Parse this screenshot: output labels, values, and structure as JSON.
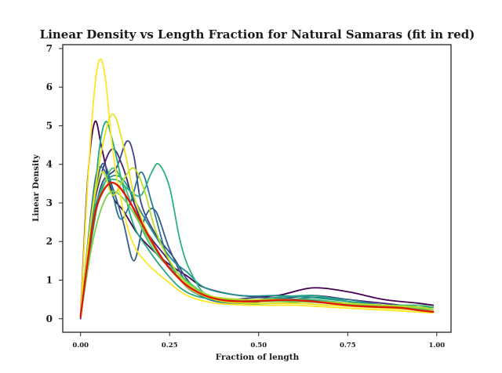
{
  "chart_data": {
    "type": "line",
    "title": "Linear Density vs Length Fraction for Natural Samaras (fit in red)",
    "xlabel": "Fraction of length",
    "ylabel": "Linear Density",
    "xlim": [
      -0.05,
      1.04
    ],
    "ylim": [
      -0.35,
      7.1
    ],
    "xticks": [
      0.0,
      0.25,
      0.5,
      0.75,
      1.0
    ],
    "xtick_labels": [
      "0.00",
      "0.25",
      "0.50",
      "0.75",
      "1.00"
    ],
    "yticks": [
      0,
      1,
      2,
      3,
      4,
      5,
      6,
      7
    ],
    "ytick_labels": [
      "0",
      "1",
      "2",
      "3",
      "4",
      "5",
      "6",
      "7"
    ],
    "grid": false,
    "fit_color": "#dd1c05",
    "series": [
      {
        "color": "#440154",
        "values": [
          [
            0.0,
            0.1
          ],
          [
            0.02,
            3.6
          ],
          [
            0.04,
            5.1
          ],
          [
            0.06,
            4.4
          ],
          [
            0.09,
            3.2
          ],
          [
            0.12,
            2.8
          ],
          [
            0.16,
            2.2
          ],
          [
            0.2,
            1.8
          ],
          [
            0.25,
            1.4
          ],
          [
            0.3,
            1.1
          ],
          [
            0.35,
            0.8
          ],
          [
            0.45,
            0.6
          ],
          [
            0.55,
            0.6
          ],
          [
            0.65,
            0.8
          ],
          [
            0.75,
            0.7
          ],
          [
            0.85,
            0.5
          ],
          [
            0.95,
            0.4
          ],
          [
            0.99,
            0.35
          ]
        ]
      },
      {
        "color": "#482475",
        "values": [
          [
            0.0,
            0.0
          ],
          [
            0.03,
            2.5
          ],
          [
            0.06,
            3.8
          ],
          [
            0.09,
            4.4
          ],
          [
            0.12,
            3.9
          ],
          [
            0.15,
            3.0
          ],
          [
            0.19,
            2.2
          ],
          [
            0.24,
            1.6
          ],
          [
            0.29,
            1.0
          ],
          [
            0.35,
            0.55
          ],
          [
            0.45,
            0.5
          ],
          [
            0.55,
            0.5
          ],
          [
            0.65,
            0.6
          ],
          [
            0.75,
            0.5
          ],
          [
            0.85,
            0.4
          ],
          [
            0.95,
            0.3
          ],
          [
            0.99,
            0.25
          ]
        ]
      },
      {
        "color": "#414487",
        "values": [
          [
            0.0,
            0.05
          ],
          [
            0.03,
            2.2
          ],
          [
            0.06,
            3.5
          ],
          [
            0.1,
            3.9
          ],
          [
            0.13,
            4.6
          ],
          [
            0.15,
            4.2
          ],
          [
            0.17,
            3.0
          ],
          [
            0.21,
            2.2
          ],
          [
            0.26,
            1.6
          ],
          [
            0.31,
            0.9
          ],
          [
            0.38,
            0.5
          ],
          [
            0.5,
            0.55
          ],
          [
            0.6,
            0.5
          ],
          [
            0.7,
            0.45
          ],
          [
            0.8,
            0.35
          ],
          [
            0.9,
            0.3
          ],
          [
            0.99,
            0.3
          ]
        ]
      },
      {
        "color": "#355f8d",
        "values": [
          [
            0.0,
            0.05
          ],
          [
            0.03,
            2.6
          ],
          [
            0.06,
            4.0
          ],
          [
            0.09,
            3.4
          ],
          [
            0.12,
            2.5
          ],
          [
            0.15,
            1.5
          ],
          [
            0.18,
            2.6
          ],
          [
            0.21,
            2.8
          ],
          [
            0.25,
            1.8
          ],
          [
            0.3,
            0.9
          ],
          [
            0.36,
            0.5
          ],
          [
            0.45,
            0.4
          ],
          [
            0.55,
            0.5
          ],
          [
            0.65,
            0.6
          ],
          [
            0.75,
            0.45
          ],
          [
            0.85,
            0.35
          ],
          [
            0.95,
            0.25
          ],
          [
            0.99,
            0.2
          ]
        ]
      },
      {
        "color": "#2a788e",
        "values": [
          [
            0.0,
            0.05
          ],
          [
            0.03,
            2.8
          ],
          [
            0.05,
            3.9
          ],
          [
            0.08,
            3.6
          ],
          [
            0.11,
            2.6
          ],
          [
            0.14,
            3.0
          ],
          [
            0.17,
            3.8
          ],
          [
            0.2,
            3.0
          ],
          [
            0.24,
            1.7
          ],
          [
            0.28,
            1.0
          ],
          [
            0.34,
            0.6
          ],
          [
            0.45,
            0.5
          ],
          [
            0.55,
            0.45
          ],
          [
            0.65,
            0.55
          ],
          [
            0.75,
            0.5
          ],
          [
            0.85,
            0.35
          ],
          [
            0.95,
            0.3
          ],
          [
            0.99,
            0.25
          ]
        ]
      },
      {
        "color": "#21918c",
        "values": [
          [
            0.0,
            0.05
          ],
          [
            0.03,
            2.4
          ],
          [
            0.06,
            3.4
          ],
          [
            0.09,
            3.7
          ],
          [
            0.12,
            3.6
          ],
          [
            0.15,
            3.1
          ],
          [
            0.18,
            2.6
          ],
          [
            0.22,
            2.0
          ],
          [
            0.26,
            1.5
          ],
          [
            0.3,
            1.2
          ],
          [
            0.35,
            0.8
          ],
          [
            0.45,
            0.6
          ],
          [
            0.55,
            0.6
          ],
          [
            0.65,
            0.55
          ],
          [
            0.75,
            0.45
          ],
          [
            0.85,
            0.35
          ],
          [
            0.95,
            0.3
          ],
          [
            0.99,
            0.3
          ]
        ]
      },
      {
        "color": "#22a884",
        "values": [
          [
            0.0,
            0.05
          ],
          [
            0.03,
            2.0
          ],
          [
            0.05,
            4.2
          ],
          [
            0.07,
            5.1
          ],
          [
            0.09,
            4.6
          ],
          [
            0.12,
            3.4
          ],
          [
            0.15,
            2.4
          ],
          [
            0.19,
            1.8
          ],
          [
            0.23,
            1.3
          ],
          [
            0.28,
            0.8
          ],
          [
            0.34,
            0.55
          ],
          [
            0.45,
            0.45
          ],
          [
            0.55,
            0.55
          ],
          [
            0.65,
            0.6
          ],
          [
            0.75,
            0.45
          ],
          [
            0.85,
            0.3
          ],
          [
            0.95,
            0.25
          ],
          [
            0.99,
            0.2
          ]
        ]
      },
      {
        "color": "#2db27d",
        "values": [
          [
            0.0,
            0.05
          ],
          [
            0.03,
            2.0
          ],
          [
            0.06,
            3.4
          ],
          [
            0.1,
            3.6
          ],
          [
            0.14,
            3.3
          ],
          [
            0.17,
            3.2
          ],
          [
            0.2,
            3.8
          ],
          [
            0.22,
            4.0
          ],
          [
            0.25,
            3.4
          ],
          [
            0.28,
            2.0
          ],
          [
            0.31,
            1.2
          ],
          [
            0.36,
            0.55
          ],
          [
            0.45,
            0.4
          ],
          [
            0.55,
            0.4
          ],
          [
            0.65,
            0.45
          ],
          [
            0.75,
            0.4
          ],
          [
            0.85,
            0.3
          ],
          [
            0.95,
            0.25
          ],
          [
            0.99,
            0.2
          ]
        ]
      },
      {
        "color": "#44bf70",
        "values": [
          [
            0.0,
            0.05
          ],
          [
            0.03,
            2.2
          ],
          [
            0.06,
            3.3
          ],
          [
            0.09,
            3.9
          ],
          [
            0.12,
            3.5
          ],
          [
            0.15,
            2.8
          ],
          [
            0.19,
            2.0
          ],
          [
            0.23,
            1.5
          ],
          [
            0.27,
            1.2
          ],
          [
            0.31,
            0.9
          ],
          [
            0.36,
            0.6
          ],
          [
            0.45,
            0.45
          ],
          [
            0.55,
            0.5
          ],
          [
            0.65,
            0.5
          ],
          [
            0.75,
            0.4
          ],
          [
            0.85,
            0.35
          ],
          [
            0.95,
            0.35
          ],
          [
            0.99,
            0.3
          ]
        ]
      },
      {
        "color": "#7ad151",
        "values": [
          [
            0.0,
            0.05
          ],
          [
            0.03,
            1.8
          ],
          [
            0.06,
            2.9
          ],
          [
            0.09,
            3.3
          ],
          [
            0.13,
            3.0
          ],
          [
            0.17,
            2.4
          ],
          [
            0.21,
            1.8
          ],
          [
            0.25,
            1.3
          ],
          [
            0.29,
            1.0
          ],
          [
            0.34,
            0.7
          ],
          [
            0.4,
            0.5
          ],
          [
            0.5,
            0.45
          ],
          [
            0.6,
            0.45
          ],
          [
            0.7,
            0.4
          ],
          [
            0.8,
            0.35
          ],
          [
            0.9,
            0.3
          ],
          [
            0.99,
            0.25
          ]
        ]
      },
      {
        "color": "#bddf26",
        "values": [
          [
            0.0,
            0.05
          ],
          [
            0.03,
            2.6
          ],
          [
            0.06,
            3.8
          ],
          [
            0.09,
            3.2
          ],
          [
            0.12,
            3.6
          ],
          [
            0.15,
            3.9
          ],
          [
            0.18,
            3.3
          ],
          [
            0.21,
            2.3
          ],
          [
            0.25,
            1.5
          ],
          [
            0.3,
            0.9
          ],
          [
            0.36,
            0.6
          ],
          [
            0.45,
            0.5
          ],
          [
            0.55,
            0.5
          ],
          [
            0.65,
            0.45
          ],
          [
            0.75,
            0.4
          ],
          [
            0.85,
            0.35
          ],
          [
            0.95,
            0.3
          ],
          [
            0.99,
            0.25
          ]
        ]
      },
      {
        "color": "#fde725",
        "values": [
          [
            0.0,
            0.05
          ],
          [
            0.02,
            3.5
          ],
          [
            0.04,
            6.0
          ],
          [
            0.055,
            6.72
          ],
          [
            0.07,
            6.2
          ],
          [
            0.09,
            4.4
          ],
          [
            0.12,
            2.8
          ],
          [
            0.15,
            1.9
          ],
          [
            0.19,
            1.4
          ],
          [
            0.24,
            1.0
          ],
          [
            0.3,
            0.6
          ],
          [
            0.38,
            0.4
          ],
          [
            0.5,
            0.35
          ],
          [
            0.6,
            0.35
          ],
          [
            0.7,
            0.3
          ],
          [
            0.8,
            0.25
          ],
          [
            0.9,
            0.2
          ],
          [
            0.99,
            0.15
          ]
        ]
      },
      {
        "color": "#e8e419",
        "values": [
          [
            0.0,
            0.05
          ],
          [
            0.03,
            2.6
          ],
          [
            0.06,
            4.4
          ],
          [
            0.09,
            5.3
          ],
          [
            0.12,
            4.5
          ],
          [
            0.15,
            3.2
          ],
          [
            0.18,
            2.4
          ],
          [
            0.22,
            1.7
          ],
          [
            0.27,
            1.1
          ],
          [
            0.32,
            0.7
          ],
          [
            0.4,
            0.45
          ],
          [
            0.5,
            0.4
          ],
          [
            0.6,
            0.4
          ],
          [
            0.7,
            0.35
          ],
          [
            0.8,
            0.3
          ],
          [
            0.9,
            0.25
          ],
          [
            0.99,
            0.2
          ]
        ]
      }
    ],
    "fit": {
      "color": "#dd1c05",
      "values": [
        [
          0.0,
          0.05
        ],
        [
          0.02,
          1.5
        ],
        [
          0.04,
          2.7
        ],
        [
          0.06,
          3.25
        ],
        [
          0.085,
          3.52
        ],
        [
          0.11,
          3.4
        ],
        [
          0.14,
          3.0
        ],
        [
          0.17,
          2.5
        ],
        [
          0.2,
          2.0
        ],
        [
          0.23,
          1.55
        ],
        [
          0.26,
          1.2
        ],
        [
          0.3,
          0.85
        ],
        [
          0.35,
          0.6
        ],
        [
          0.4,
          0.48
        ],
        [
          0.45,
          0.45
        ],
        [
          0.5,
          0.46
        ],
        [
          0.55,
          0.48
        ],
        [
          0.6,
          0.48
        ],
        [
          0.65,
          0.45
        ],
        [
          0.7,
          0.4
        ],
        [
          0.75,
          0.35
        ],
        [
          0.8,
          0.32
        ],
        [
          0.85,
          0.3
        ],
        [
          0.9,
          0.28
        ],
        [
          0.95,
          0.22
        ],
        [
          0.99,
          0.18
        ]
      ]
    }
  }
}
